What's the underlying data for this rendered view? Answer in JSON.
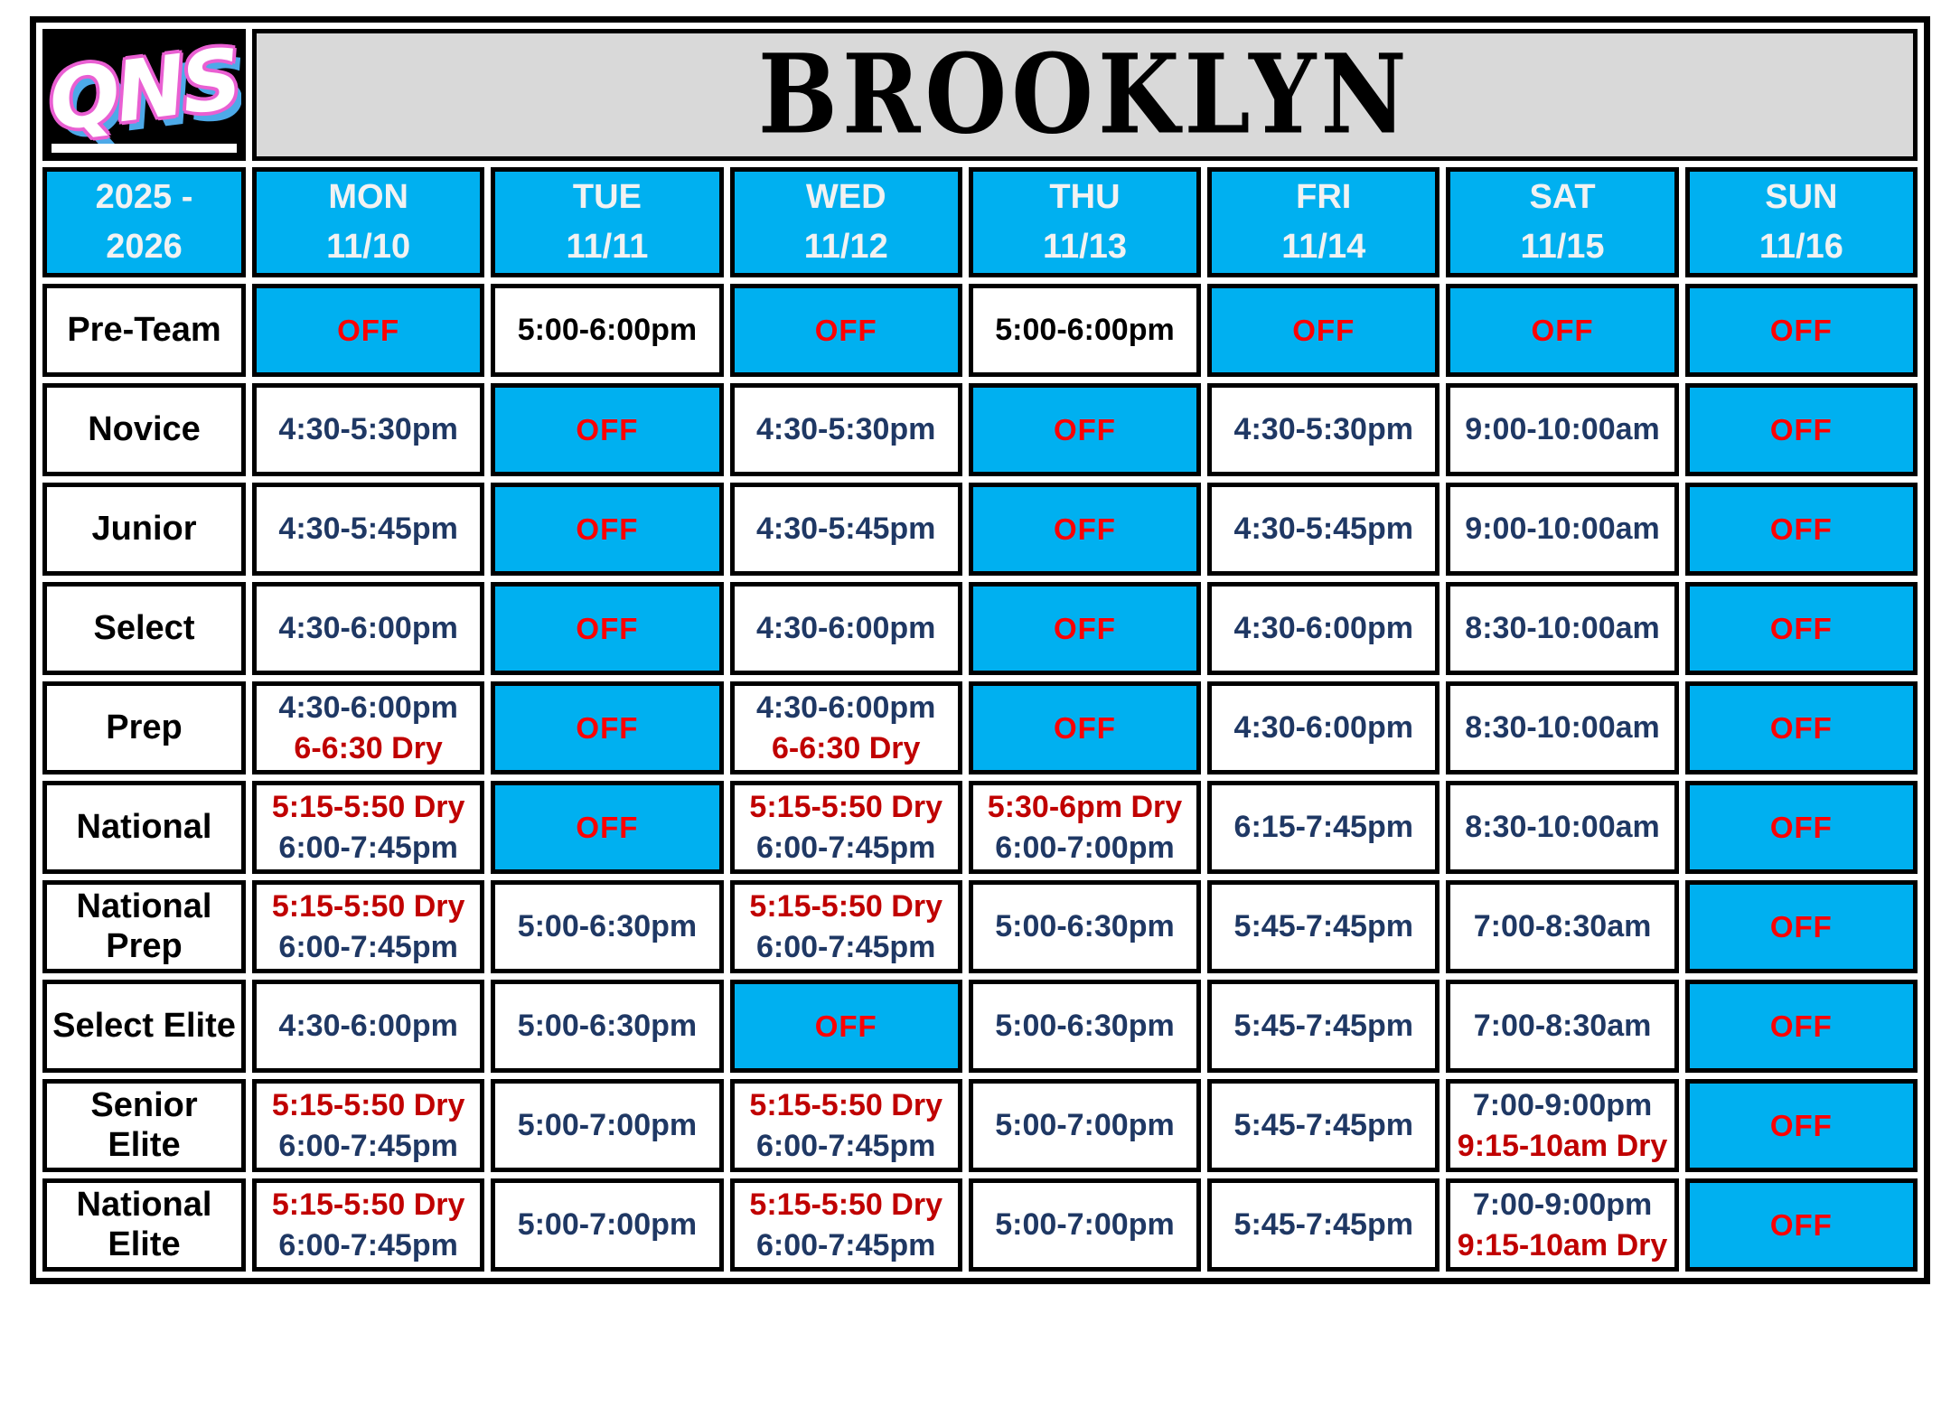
{
  "logo": {
    "text": "QNS"
  },
  "title": "BROOKLYN",
  "season": {
    "line1": "2025 -",
    "line2": "2026"
  },
  "off_label": "OFF",
  "colors": {
    "cell_blue": "#00b0f0",
    "time_navy": "#1f3864",
    "off_red": "#ff0000",
    "dry_red": "#c00000",
    "title_bg": "#d9d9d9",
    "logo_pink": "#e95fd2",
    "logo_blue": "#4da9e8"
  },
  "schedule": {
    "columns": [
      {
        "day": "MON",
        "date": "11/10"
      },
      {
        "day": "TUE",
        "date": "11/11"
      },
      {
        "day": "WED",
        "date": "11/12"
      },
      {
        "day": "THU",
        "date": "11/13"
      },
      {
        "day": "FRI",
        "date": "11/14"
      },
      {
        "day": "SAT",
        "date": "11/15"
      },
      {
        "day": "SUN",
        "date": "11/16"
      }
    ],
    "rows": [
      {
        "team": "Pre-Team",
        "cells": [
          {
            "off": true
          },
          {
            "lines": [
              {
                "t": "5:00-6:00pm",
                "c": "black"
              }
            ]
          },
          {
            "off": true
          },
          {
            "lines": [
              {
                "t": "5:00-6:00pm",
                "c": "black"
              }
            ]
          },
          {
            "off": true
          },
          {
            "off": true
          },
          {
            "off": true
          }
        ]
      },
      {
        "team": "Novice",
        "cells": [
          {
            "lines": [
              {
                "t": "4:30-5:30pm",
                "c": "navy"
              }
            ]
          },
          {
            "off": true
          },
          {
            "lines": [
              {
                "t": "4:30-5:30pm",
                "c": "navy"
              }
            ]
          },
          {
            "off": true
          },
          {
            "lines": [
              {
                "t": "4:30-5:30pm",
                "c": "navy"
              }
            ]
          },
          {
            "lines": [
              {
                "t": "9:00-10:00am",
                "c": "navy"
              }
            ]
          },
          {
            "off": true
          }
        ]
      },
      {
        "team": "Junior",
        "cells": [
          {
            "lines": [
              {
                "t": "4:30-5:45pm",
                "c": "navy"
              }
            ]
          },
          {
            "off": true
          },
          {
            "lines": [
              {
                "t": "4:30-5:45pm",
                "c": "navy"
              }
            ]
          },
          {
            "off": true
          },
          {
            "lines": [
              {
                "t": "4:30-5:45pm",
                "c": "navy"
              }
            ]
          },
          {
            "lines": [
              {
                "t": "9:00-10:00am",
                "c": "navy"
              }
            ]
          },
          {
            "off": true
          }
        ]
      },
      {
        "team": "Select",
        "cells": [
          {
            "lines": [
              {
                "t": "4:30-6:00pm",
                "c": "navy"
              }
            ]
          },
          {
            "off": true
          },
          {
            "lines": [
              {
                "t": "4:30-6:00pm",
                "c": "navy"
              }
            ]
          },
          {
            "off": true
          },
          {
            "lines": [
              {
                "t": "4:30-6:00pm",
                "c": "navy"
              }
            ]
          },
          {
            "lines": [
              {
                "t": "8:30-10:00am",
                "c": "navy"
              }
            ]
          },
          {
            "off": true
          }
        ]
      },
      {
        "team": "Prep",
        "cells": [
          {
            "lines": [
              {
                "t": "4:30-6:00pm",
                "c": "navy"
              },
              {
                "t": "6-6:30 Dry",
                "c": "red"
              }
            ]
          },
          {
            "off": true
          },
          {
            "lines": [
              {
                "t": "4:30-6:00pm",
                "c": "navy"
              },
              {
                "t": "6-6:30 Dry",
                "c": "red"
              }
            ]
          },
          {
            "off": true
          },
          {
            "lines": [
              {
                "t": "4:30-6:00pm",
                "c": "navy"
              }
            ]
          },
          {
            "lines": [
              {
                "t": "8:30-10:00am",
                "c": "navy"
              }
            ]
          },
          {
            "off": true
          }
        ]
      },
      {
        "team": "National",
        "cells": [
          {
            "lines": [
              {
                "t": "5:15-5:50 Dry",
                "c": "red"
              },
              {
                "t": "6:00-7:45pm",
                "c": "navy"
              }
            ]
          },
          {
            "off": true
          },
          {
            "lines": [
              {
                "t": "5:15-5:50 Dry",
                "c": "red"
              },
              {
                "t": "6:00-7:45pm",
                "c": "navy"
              }
            ]
          },
          {
            "lines": [
              {
                "t": "5:30-6pm Dry",
                "c": "red"
              },
              {
                "t": "6:00-7:00pm",
                "c": "navy"
              }
            ]
          },
          {
            "lines": [
              {
                "t": "6:15-7:45pm",
                "c": "navy"
              }
            ]
          },
          {
            "lines": [
              {
                "t": "8:30-10:00am",
                "c": "navy"
              }
            ]
          },
          {
            "off": true
          }
        ]
      },
      {
        "team": "National Prep",
        "cells": [
          {
            "lines": [
              {
                "t": "5:15-5:50 Dry",
                "c": "red"
              },
              {
                "t": "6:00-7:45pm",
                "c": "navy"
              }
            ]
          },
          {
            "lines": [
              {
                "t": "5:00-6:30pm",
                "c": "navy"
              }
            ]
          },
          {
            "lines": [
              {
                "t": "5:15-5:50 Dry",
                "c": "red"
              },
              {
                "t": "6:00-7:45pm",
                "c": "navy"
              }
            ]
          },
          {
            "lines": [
              {
                "t": "5:00-6:30pm",
                "c": "navy"
              }
            ]
          },
          {
            "lines": [
              {
                "t": "5:45-7:45pm",
                "c": "navy"
              }
            ]
          },
          {
            "lines": [
              {
                "t": "7:00-8:30am",
                "c": "navy"
              }
            ]
          },
          {
            "off": true
          }
        ]
      },
      {
        "team": "Select Elite",
        "cells": [
          {
            "lines": [
              {
                "t": "4:30-6:00pm",
                "c": "navy"
              }
            ]
          },
          {
            "lines": [
              {
                "t": "5:00-6:30pm",
                "c": "navy"
              }
            ]
          },
          {
            "off": true
          },
          {
            "lines": [
              {
                "t": "5:00-6:30pm",
                "c": "navy"
              }
            ]
          },
          {
            "lines": [
              {
                "t": "5:45-7:45pm",
                "c": "navy"
              }
            ]
          },
          {
            "lines": [
              {
                "t": "7:00-8:30am",
                "c": "navy"
              }
            ]
          },
          {
            "off": true
          }
        ]
      },
      {
        "team": "Senior Elite",
        "cells": [
          {
            "lines": [
              {
                "t": "5:15-5:50 Dry",
                "c": "red"
              },
              {
                "t": "6:00-7:45pm",
                "c": "navy"
              }
            ]
          },
          {
            "lines": [
              {
                "t": "5:00-7:00pm",
                "c": "navy"
              }
            ]
          },
          {
            "lines": [
              {
                "t": "5:15-5:50 Dry",
                "c": "red"
              },
              {
                "t": "6:00-7:45pm",
                "c": "navy"
              }
            ]
          },
          {
            "lines": [
              {
                "t": "5:00-7:00pm",
                "c": "navy"
              }
            ]
          },
          {
            "lines": [
              {
                "t": "5:45-7:45pm",
                "c": "navy"
              }
            ]
          },
          {
            "lines": [
              {
                "t": "7:00-9:00pm",
                "c": "navy"
              },
              {
                "t": "9:15-10am Dry",
                "c": "red"
              }
            ]
          },
          {
            "off": true
          }
        ]
      },
      {
        "team": "National Elite",
        "cells": [
          {
            "lines": [
              {
                "t": "5:15-5:50 Dry",
                "c": "red"
              },
              {
                "t": "6:00-7:45pm",
                "c": "navy"
              }
            ]
          },
          {
            "lines": [
              {
                "t": "5:00-7:00pm",
                "c": "navy"
              }
            ]
          },
          {
            "lines": [
              {
                "t": "5:15-5:50 Dry",
                "c": "red"
              },
              {
                "t": "6:00-7:45pm",
                "c": "navy"
              }
            ]
          },
          {
            "lines": [
              {
                "t": "5:00-7:00pm",
                "c": "navy"
              }
            ]
          },
          {
            "lines": [
              {
                "t": "5:45-7:45pm",
                "c": "navy"
              }
            ]
          },
          {
            "lines": [
              {
                "t": "7:00-9:00pm",
                "c": "navy"
              },
              {
                "t": "9:15-10am Dry",
                "c": "red"
              }
            ]
          },
          {
            "off": true
          }
        ]
      }
    ]
  }
}
